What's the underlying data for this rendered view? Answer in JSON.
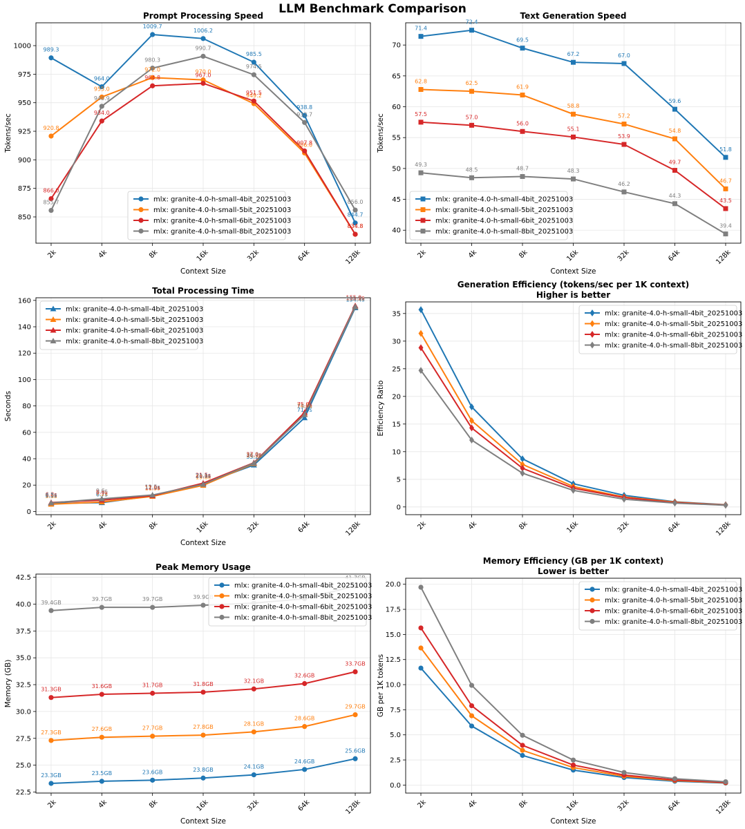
{
  "figure_title": "LLM Benchmark Comparison",
  "colors": {
    "mlx: granite-4.0-h-small-4bit_20251003": "#1f77b4",
    "mlx: granite-4.0-h-small-5bit_20251003": "#ff7f0e",
    "mlx: granite-4.0-h-small-6bit_20251003": "#d62728",
    "mlx: granite-4.0-h-small-8bit_20251003": "#7f7f7f"
  },
  "chart_data": [
    {
      "id": "prompt",
      "type": "line",
      "title": "Prompt Processing Speed",
      "xlabel": "Context Size",
      "ylabel": "Tokens/sec",
      "categories": [
        "2k",
        "4k",
        "8k",
        "16k",
        "32k",
        "64k",
        "128k"
      ],
      "ylim": [
        827,
        1020
      ],
      "yticks": [
        850,
        875,
        900,
        925,
        950,
        975,
        1000
      ],
      "yticks_label": [
        "850",
        "875",
        "900",
        "925",
        "950",
        "975",
        "1000"
      ],
      "marker": "circle",
      "legend_loc": "lower center",
      "label_suffix": "",
      "series": [
        {
          "name": "mlx: granite-4.0-h-small-4bit_20251003",
          "values": [
            989.3,
            964.0,
            1009.7,
            1006.2,
            985.5,
            938.8,
            844.7
          ],
          "labels": [
            "989.3",
            "964.0",
            "1009.7",
            "1006.2",
            "985.5",
            "938.8",
            "844.7"
          ]
        },
        {
          "name": "mlx: granite-4.0-h-small-5bit_20251003",
          "values": [
            920.8,
            955.0,
            972.0,
            970.0,
            949.2,
            906.0,
            834.8
          ],
          "labels": [
            "920.8",
            "955.0",
            "972.0",
            "970.0",
            "949.2",
            "906.0",
            "834.8"
          ]
        },
        {
          "name": "mlx: granite-4.0-h-small-6bit_20251003",
          "values": [
            866.0,
            934.0,
            964.8,
            967.0,
            951.5,
            907.8,
            834.8
          ],
          "labels": [
            "866.0",
            "934.0",
            "964.8",
            "967.0",
            "951.5",
            "907.8",
            "834.8"
          ]
        },
        {
          "name": "mlx: granite-4.0-h-small-8bit_20251003",
          "values": [
            855.7,
            946.9,
            980.3,
            990.7,
            974.5,
            932.7,
            856.0
          ],
          "labels": [
            "855.7",
            "946.9",
            "980.3",
            "990.7",
            "974.5",
            "932.7",
            "856.0"
          ]
        }
      ]
    },
    {
      "id": "textgen",
      "type": "line",
      "title": "Text Generation Speed",
      "xlabel": "Context Size",
      "ylabel": "Tokens/sec",
      "categories": [
        "2k",
        "4k",
        "8k",
        "16k",
        "32k",
        "64k",
        "128k"
      ],
      "ylim": [
        37.9,
        73.6
      ],
      "yticks": [
        40,
        45,
        50,
        55,
        60,
        65,
        70
      ],
      "yticks_label": [
        "40",
        "45",
        "50",
        "55",
        "60",
        "65",
        "70"
      ],
      "marker": "square",
      "legend_loc": "lower left",
      "label_suffix": "",
      "series": [
        {
          "name": "mlx: granite-4.0-h-small-4bit_20251003",
          "values": [
            71.4,
            72.4,
            69.5,
            67.2,
            67.0,
            59.6,
            51.8
          ],
          "labels": [
            "71.4",
            "72.4",
            "69.5",
            "67.2",
            "67.0",
            "59.6",
            "51.8"
          ]
        },
        {
          "name": "mlx: granite-4.0-h-small-5bit_20251003",
          "values": [
            62.8,
            62.5,
            61.9,
            58.8,
            57.2,
            54.8,
            46.7
          ],
          "labels": [
            "62.8",
            "62.5",
            "61.9",
            "58.8",
            "57.2",
            "54.8",
            "46.7"
          ]
        },
        {
          "name": "mlx: granite-4.0-h-small-6bit_20251003",
          "values": [
            57.5,
            57.0,
            56.0,
            55.1,
            53.9,
            49.7,
            43.5
          ],
          "labels": [
            "57.5",
            "57.0",
            "56.0",
            "55.1",
            "53.9",
            "49.7",
            "43.5"
          ]
        },
        {
          "name": "mlx: granite-4.0-h-small-8bit_20251003",
          "values": [
            49.3,
            48.5,
            48.7,
            48.3,
            46.2,
            44.3,
            39.4
          ],
          "labels": [
            "49.3",
            "48.5",
            "48.7",
            "48.3",
            "46.2",
            "44.3",
            "39.4"
          ]
        }
      ]
    },
    {
      "id": "totaltime",
      "type": "line",
      "title": "Total Processing Time",
      "xlabel": "Context Size",
      "ylabel": "Seconds",
      "categories": [
        "2k",
        "4k",
        "8k",
        "16k",
        "32k",
        "64k",
        "128k"
      ],
      "ylim": [
        -2.4,
        162
      ],
      "yticks": [
        0,
        20,
        40,
        60,
        80,
        100,
        120,
        140,
        160
      ],
      "yticks_label": [
        "0",
        "20",
        "40",
        "60",
        "80",
        "100",
        "120",
        "140",
        "160"
      ],
      "marker": "triangle",
      "legend_loc": "upper left",
      "label_suffix": "s",
      "series": [
        {
          "name": "mlx: granite-4.0-h-small-4bit_20251003",
          "values": [
            6.1,
            6.7,
            11.9,
            21.1,
            35.2,
            71.0,
            154.4
          ],
          "labels": [
            "6.1s",
            "6.7s",
            "11.9s",
            "21.1s",
            "35.2s",
            "71.0s",
            "154.4s"
          ]
        },
        {
          "name": "mlx: granite-4.0-h-small-5bit_20251003",
          "values": [
            5.5,
            7.2,
            11.5,
            19.8,
            36.3,
            74.0,
            155.2
          ],
          "labels": [
            "5.5s",
            "7.2s",
            "11.5s",
            "19.8s",
            "36.3s",
            "74.0s",
            "155.2s"
          ]
        },
        {
          "name": "mlx: granite-4.0-h-small-6bit_20251003",
          "values": [
            6.8,
            8.6,
            12.0,
            21.5,
            37.0,
            75.0,
            155.9
          ],
          "labels": [
            "6.8s",
            "8.6s",
            "12.0s",
            "21.5s",
            "37.0s",
            "75.0s",
            "155.9s"
          ]
        },
        {
          "name": "mlx: granite-4.0-h-small-8bit_20251003",
          "values": [
            6.5,
            9.6,
            12.5,
            20.6,
            36.7,
            73.4,
            155.3
          ],
          "labels": [
            "6.5s",
            "9.6s",
            "12.5s",
            "20.6s",
            "36.7s",
            "73.4s",
            "155.3s"
          ]
        }
      ]
    },
    {
      "id": "geneff",
      "type": "line",
      "title": "Generation Efficiency (tokens/sec per 1K context)",
      "subtitle": "Higher is better",
      "xlabel": "",
      "ylabel": "Efficiency Ratio",
      "categories": [
        "2k",
        "4k",
        "8k",
        "16k",
        "32k",
        "64k",
        "128k"
      ],
      "ylim": [
        -1.4,
        37.1
      ],
      "yticks": [
        0,
        5,
        10,
        15,
        20,
        25,
        30,
        35
      ],
      "yticks_label": [
        "0",
        "5",
        "10",
        "15",
        "20",
        "25",
        "30",
        "35"
      ],
      "marker": "diamond",
      "legend_loc": "upper right",
      "label_suffix": "",
      "series": [
        {
          "name": "mlx: granite-4.0-h-small-4bit_20251003",
          "values": [
            35.7,
            18.1,
            8.7,
            4.2,
            2.1,
            0.93,
            0.4
          ]
        },
        {
          "name": "mlx: granite-4.0-h-small-5bit_20251003",
          "values": [
            31.4,
            15.6,
            7.7,
            3.7,
            1.8,
            0.86,
            0.36
          ]
        },
        {
          "name": "mlx: granite-4.0-h-small-6bit_20251003",
          "values": [
            28.8,
            14.3,
            7.0,
            3.4,
            1.7,
            0.78,
            0.34
          ]
        },
        {
          "name": "mlx: granite-4.0-h-small-8bit_20251003",
          "values": [
            24.7,
            12.1,
            6.1,
            3.0,
            1.4,
            0.69,
            0.31
          ]
        }
      ]
    },
    {
      "id": "memory",
      "type": "line",
      "title": "Peak Memory Usage",
      "xlabel": "Context Size",
      "ylabel": "Memory (GB)",
      "categories": [
        "2k",
        "4k",
        "8k",
        "16k",
        "32k",
        "64k",
        "128k"
      ],
      "ylim": [
        22.4,
        42.8
      ],
      "yticks": [
        22.5,
        25.0,
        27.5,
        30.0,
        32.5,
        35.0,
        37.5,
        40.0,
        42.5
      ],
      "yticks_label": [
        "22.5",
        "25.0",
        "27.5",
        "30.0",
        "32.5",
        "35.0",
        "37.5",
        "40.0",
        "42.5"
      ],
      "marker": "circle",
      "legend_loc": "upper right",
      "label_suffix": "GB",
      "series": [
        {
          "name": "mlx: granite-4.0-h-small-4bit_20251003",
          "values": [
            23.3,
            23.5,
            23.6,
            23.8,
            24.1,
            24.6,
            25.6
          ],
          "labels": [
            "23.3GB",
            "23.5GB",
            "23.6GB",
            "23.8GB",
            "24.1GB",
            "24.6GB",
            "25.6GB"
          ]
        },
        {
          "name": "mlx: granite-4.0-h-small-5bit_20251003",
          "values": [
            27.3,
            27.6,
            27.7,
            27.8,
            28.1,
            28.6,
            29.7
          ],
          "labels": [
            "27.3GB",
            "27.6GB",
            "27.7GB",
            "27.8GB",
            "28.1GB",
            "28.6GB",
            "29.7GB"
          ]
        },
        {
          "name": "mlx: granite-4.0-h-small-6bit_20251003",
          "values": [
            31.3,
            31.6,
            31.7,
            31.8,
            32.1,
            32.6,
            33.7
          ],
          "labels": [
            "31.3GB",
            "31.6GB",
            "31.7GB",
            "31.8GB",
            "32.1GB",
            "32.6GB",
            "33.7GB"
          ]
        },
        {
          "name": "mlx: granite-4.0-h-small-8bit_20251003",
          "values": [
            39.4,
            39.7,
            39.7,
            39.9,
            40.1,
            40.5,
            41.7
          ],
          "labels": [
            "39.4GB",
            "39.7GB",
            "39.7GB",
            "39.9GB",
            "",
            "",
            "41.7GB"
          ]
        }
      ]
    },
    {
      "id": "memeff",
      "type": "line",
      "title": "Memory Efficiency (GB per 1K context)",
      "subtitle": "Lower is better",
      "xlabel": "Context Size",
      "ylabel": "GB per 1K tokens",
      "categories": [
        "2k",
        "4k",
        "8k",
        "16k",
        "32k",
        "64k",
        "128k"
      ],
      "ylim": [
        -0.8,
        20.6
      ],
      "yticks": [
        0.0,
        2.5,
        5.0,
        7.5,
        10.0,
        12.5,
        15.0,
        17.5,
        20.0
      ],
      "yticks_label": [
        "0.0",
        "2.5",
        "5.0",
        "7.5",
        "10.0",
        "12.5",
        "15.0",
        "17.5",
        "20.0"
      ],
      "marker": "circle",
      "legend_loc": "upper right",
      "label_suffix": "",
      "series": [
        {
          "name": "mlx: granite-4.0-h-small-4bit_20251003",
          "values": [
            11.65,
            5.88,
            2.95,
            1.49,
            0.75,
            0.38,
            0.2
          ]
        },
        {
          "name": "mlx: granite-4.0-h-small-5bit_20251003",
          "values": [
            13.65,
            6.9,
            3.46,
            1.74,
            0.88,
            0.45,
            0.23
          ]
        },
        {
          "name": "mlx: granite-4.0-h-small-6bit_20251003",
          "values": [
            15.65,
            7.9,
            3.96,
            1.99,
            1.0,
            0.51,
            0.26
          ]
        },
        {
          "name": "mlx: granite-4.0-h-small-8bit_20251003",
          "values": [
            19.7,
            9.93,
            4.96,
            2.49,
            1.25,
            0.63,
            0.33
          ]
        }
      ]
    }
  ]
}
